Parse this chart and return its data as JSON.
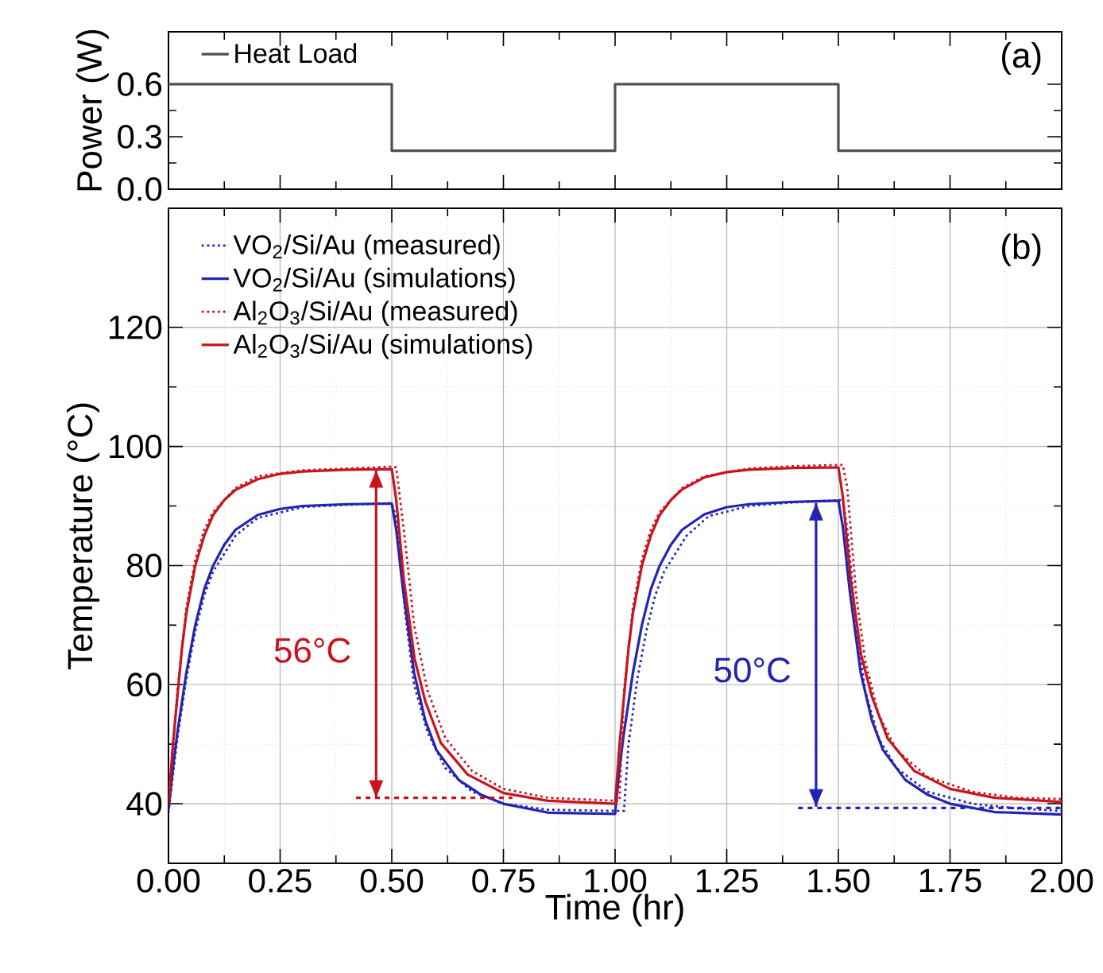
{
  "chart_data": [
    {
      "type": "line",
      "ylabel": "Power (W)",
      "xlim": [
        0,
        2
      ],
      "ylim": [
        0,
        0.9
      ],
      "xticks": [
        {
          "value": 0,
          "label": null
        },
        {
          "value": 0.25,
          "label": null
        },
        {
          "value": 0.5,
          "label": null
        },
        {
          "value": 0.75,
          "label": null
        },
        {
          "value": 1,
          "label": null
        },
        {
          "value": 1.25,
          "label": null
        },
        {
          "value": 1.5,
          "label": null
        },
        {
          "value": 1.75,
          "label": null
        },
        {
          "value": 2,
          "label": null
        }
      ],
      "yticks": [
        {
          "value": 0,
          "label": "0.0"
        },
        {
          "value": 0.3,
          "label": "0.3"
        },
        {
          "value": 0.6,
          "label": "0.6"
        }
      ],
      "tick_labels": "y",
      "legend": "top left",
      "annotations": [
        "(a)"
      ],
      "series": [
        {
          "name": "Heat Load",
          "color": "#505050",
          "line_style": "solid",
          "x": [
            0,
            0.5,
            0.5,
            1,
            1,
            1.5,
            1.5,
            2
          ],
          "values": [
            0.6,
            0.6,
            0.22,
            0.22,
            0.6,
            0.6,
            0.22,
            0.22
          ]
        }
      ]
    },
    {
      "type": "line",
      "xlabel": "Time (hr)",
      "ylabel": "Temperature (°C)",
      "xlim": [
        0,
        2
      ],
      "ylim": [
        30,
        140
      ],
      "xticks": [
        {
          "value": 0,
          "label": "0.00"
        },
        {
          "value": 0.25,
          "label": "0.25"
        },
        {
          "value": 0.5,
          "label": "0.50"
        },
        {
          "value": 0.75,
          "label": "0.75"
        },
        {
          "value": 1,
          "label": "1.00"
        },
        {
          "value": 1.25,
          "label": "1.25"
        },
        {
          "value": 1.5,
          "label": "1.50"
        },
        {
          "value": 1.75,
          "label": "1.75"
        },
        {
          "value": 2,
          "label": "2.00"
        }
      ],
      "yticks": [
        40,
        60,
        80,
        100,
        120
      ],
      "grid": true,
      "legend": "top left",
      "annotations": [
        "(b)",
        "56°C",
        "50°C"
      ],
      "series": [
        {
          "name": "VO$_{2}$/Si/Au (measured)",
          "color": "#2323b4",
          "line_style": "dotted",
          "x": [
            0,
            0.02,
            0.04,
            0.06,
            0.08,
            0.1,
            0.15,
            0.2,
            0.3,
            0.4,
            0.5,
            0.51,
            0.53,
            0.55,
            0.58,
            0.62,
            0.68,
            0.75,
            0.85,
            1.0,
            1.02,
            1.03,
            1.05,
            1.07,
            1.09,
            1.11,
            1.16,
            1.21,
            1.3,
            1.4,
            1.51,
            1.52,
            1.54,
            1.56,
            1.59,
            1.63,
            1.7,
            1.8,
            1.9,
            2.0
          ],
          "values": [
            38.5,
            51,
            61,
            69,
            75,
            79,
            85,
            88,
            89.8,
            90.2,
            90.5,
            88,
            72,
            60,
            52,
            46,
            42,
            40,
            39,
            38.8,
            38.8,
            50,
            61,
            69,
            75,
            79,
            85,
            88.3,
            90,
            90.6,
            91,
            86,
            70,
            59,
            51,
            46,
            42,
            40,
            39.2,
            38.8
          ]
        },
        {
          "name": "VO$_{2}$/Si/Au (simulations)",
          "color": "#2323b4",
          "line_style": "solid",
          "x": [
            0,
            0.01,
            0.02,
            0.04,
            0.06,
            0.08,
            0.1,
            0.125,
            0.15,
            0.2,
            0.25,
            0.3,
            0.4,
            0.5,
            0.51,
            0.525,
            0.55,
            0.575,
            0.6,
            0.65,
            0.7,
            0.75,
            0.85,
            1.0,
            1.01,
            1.02,
            1.04,
            1.06,
            1.08,
            1.1,
            1.125,
            1.15,
            1.2,
            1.25,
            1.3,
            1.4,
            1.5,
            1.51,
            1.525,
            1.55,
            1.575,
            1.6,
            1.65,
            1.7,
            1.75,
            1.85,
            2.0
          ],
          "values": [
            39,
            46,
            52,
            62,
            70,
            76,
            80,
            83.5,
            86,
            88.5,
            89.5,
            90,
            90.3,
            90.4,
            86,
            76,
            62,
            54,
            49,
            44,
            41.5,
            40,
            38.5,
            38.3,
            46,
            52,
            62,
            70,
            76,
            80,
            83.5,
            86,
            88.6,
            89.8,
            90.3,
            90.7,
            90.9,
            86.5,
            76,
            62,
            54,
            49,
            44,
            41.5,
            40,
            38.6,
            38.2
          ]
        },
        {
          "name": "Al$_{2}$O$_{3}$/Si/Au (measured)",
          "color": "#c8141e",
          "line_style": "dotted",
          "x": [
            0,
            0.02,
            0.04,
            0.06,
            0.08,
            0.1,
            0.15,
            0.2,
            0.3,
            0.4,
            0.5,
            0.51,
            0.53,
            0.55,
            0.58,
            0.62,
            0.68,
            0.75,
            0.85,
            1.0,
            1.01,
            1.02,
            1.04,
            1.06,
            1.08,
            1.1,
            1.15,
            1.2,
            1.3,
            1.4,
            1.51,
            1.52,
            1.54,
            1.56,
            1.59,
            1.63,
            1.7,
            1.8,
            1.9,
            2.0
          ],
          "values": [
            40,
            59,
            73,
            81,
            86,
            89,
            93,
            95,
            96,
            96.3,
            96.6,
            96.5,
            84,
            70,
            59,
            51,
            45.5,
            42.5,
            41,
            40.5,
            40.5,
            59,
            73,
            81,
            86,
            89,
            93,
            95,
            96.3,
            96.7,
            96.9,
            93,
            75,
            64,
            55,
            49,
            44.5,
            42,
            41,
            40.8
          ]
        },
        {
          "name": "Al$_{2}$O$_{3}$/Si/Au (simulations)",
          "color": "#c8141e",
          "line_style": "solid",
          "x": [
            0,
            0.01,
            0.02,
            0.03,
            0.04,
            0.06,
            0.08,
            0.1,
            0.125,
            0.15,
            0.2,
            0.25,
            0.3,
            0.4,
            0.5,
            0.51,
            0.527,
            0.551,
            0.575,
            0.61,
            0.67,
            0.75,
            0.85,
            1.0,
            1.01,
            1.02,
            1.03,
            1.04,
            1.06,
            1.08,
            1.1,
            1.125,
            1.15,
            1.2,
            1.25,
            1.3,
            1.4,
            1.5,
            1.51,
            1.527,
            1.551,
            1.575,
            1.61,
            1.67,
            1.75,
            1.85,
            2.0
          ],
          "values": [
            40,
            50,
            58,
            66,
            72,
            80,
            85,
            88.5,
            91,
            92.7,
            94.5,
            95.4,
            95.8,
            96.1,
            96.2,
            91,
            77.6,
            64.4,
            57.2,
            50.2,
            44.9,
            41.8,
            40.5,
            40,
            50,
            58,
            66,
            72,
            80,
            85,
            88.5,
            91,
            92.8,
            94.8,
            95.7,
            96.1,
            96.4,
            96.5,
            91.5,
            78,
            65,
            58,
            51,
            45.5,
            42.5,
            41,
            40.3
          ]
        },
        {
          "color": "#c8141e",
          "line_style": "dashed",
          "x": [
            0.42,
            0.77
          ],
          "values": [
            41,
            41
          ]
        },
        {
          "color": "#2323b4",
          "line_style": "dashed",
          "x": [
            1.41,
            2.0
          ],
          "values": [
            39.3,
            39.3
          ]
        },
        {
          "color": "#c8141e",
          "line_style": "solid",
          "x": [
            0.465,
            0.465
          ],
          "values": [
            41,
            96
          ]
        },
        {
          "color": "#2323b4",
          "line_style": "solid",
          "x": [
            1.45,
            1.45
          ],
          "values": [
            39.5,
            90.5
          ]
        }
      ]
    }
  ]
}
